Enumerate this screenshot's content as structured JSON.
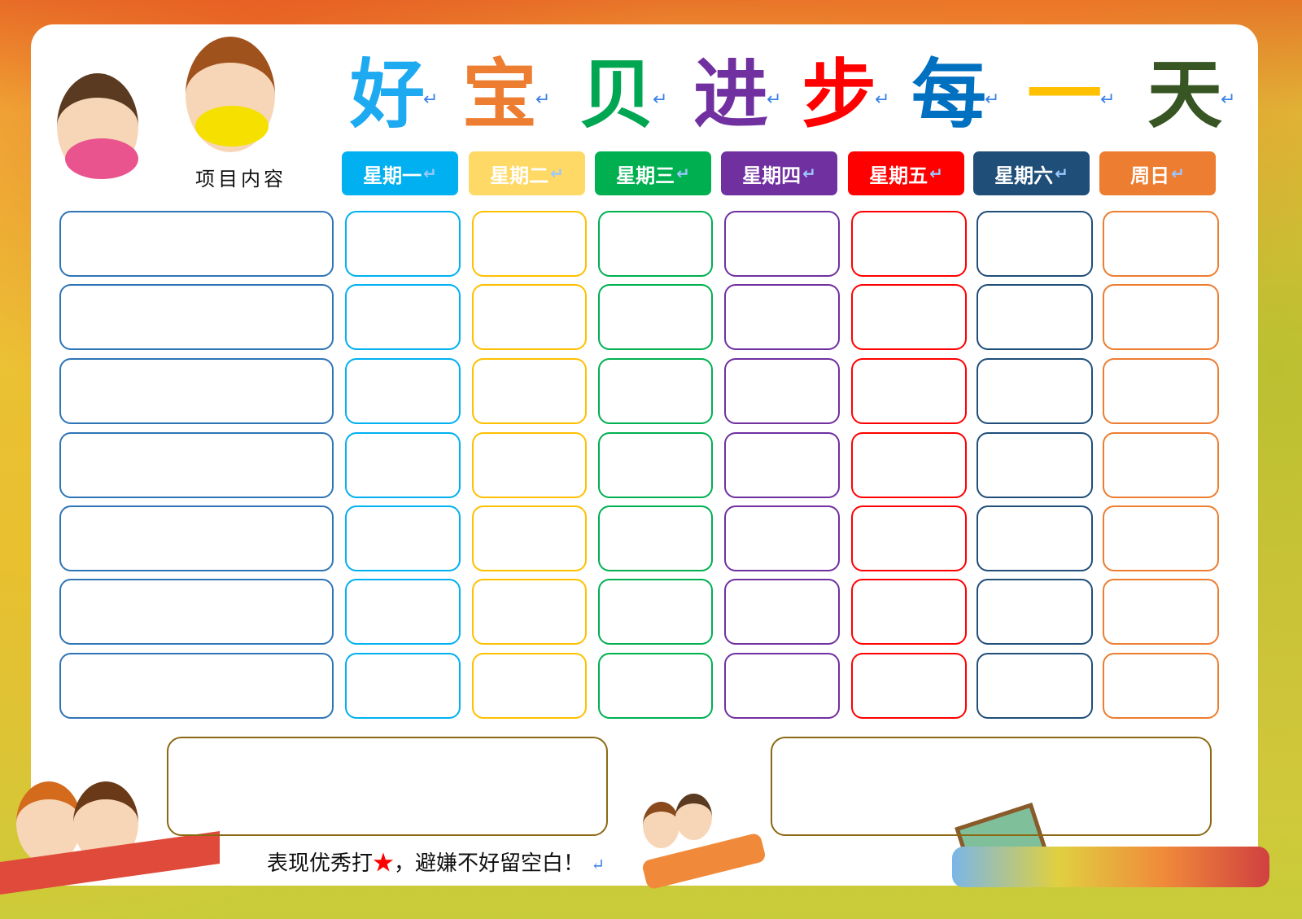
{
  "title": {
    "chars": [
      {
        "text": "好",
        "color": "#1eaaf1"
      },
      {
        "text": "宝",
        "color": "#ed7d31"
      },
      {
        "text": "贝",
        "color": "#00a651"
      },
      {
        "text": "进",
        "color": "#7030a0"
      },
      {
        "text": "步",
        "color": "#ff0000"
      },
      {
        "text": "每",
        "color": "#0070c0"
      },
      {
        "text": "一",
        "color": "#ffc000"
      },
      {
        "text": "天",
        "color": "#375623"
      }
    ]
  },
  "item_label": "项目内容",
  "days": [
    {
      "label": "星期一",
      "color": "#00b0f0",
      "text_color": "#ffffff"
    },
    {
      "label": "星期二",
      "color": "#ffd966",
      "text_color": "#ffffff"
    },
    {
      "label": "星期三",
      "color": "#00b050",
      "text_color": "#ffffff"
    },
    {
      "label": "星期四",
      "color": "#7030a0",
      "text_color": "#ffffff"
    },
    {
      "label": "星期五",
      "color": "#ff0000",
      "text_color": "#ffffff"
    },
    {
      "label": "星期六",
      "color": "#1f4e79",
      "text_color": "#ffffff"
    },
    {
      "label": "周日",
      "color": "#ed7d31",
      "text_color": "#ffffff"
    }
  ],
  "cell_colors": [
    "#2e75b6",
    "#00b0f0",
    "#ffc000",
    "#00b050",
    "#7030a0",
    "#ff0000",
    "#1f4e79",
    "#ed7d31"
  ],
  "footer": {
    "before": "表现优秀打",
    "star": "★",
    "after": "，避嫌不好留空白！"
  },
  "return_mark": "↵"
}
